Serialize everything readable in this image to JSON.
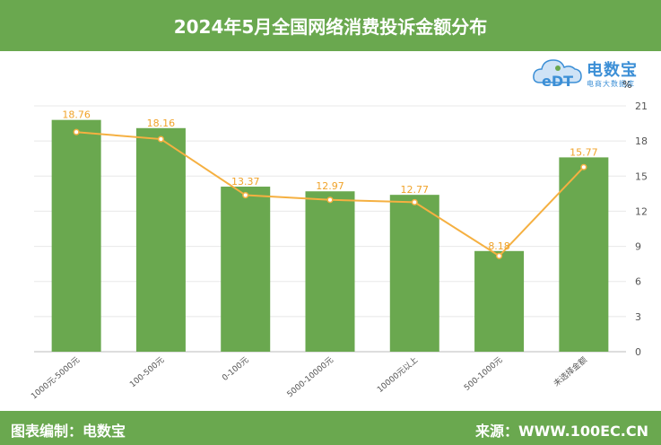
{
  "header": {
    "title": "2024年5月全国网络消费投诉金额分布"
  },
  "footer": {
    "left": "图表编制：电数宝",
    "right": "来源：WWW.100EC.CN"
  },
  "logo": {
    "brand": "电数宝",
    "tagline": "电商大数据库",
    "badge": "eDT"
  },
  "colors": {
    "bar": "#6aa84f",
    "line": "#f5b041",
    "label": "#f0a32a",
    "banner": "#6aa84f"
  },
  "chart_data": {
    "type": "bar",
    "unit": "%",
    "categories": [
      "1000元-5000元",
      "100-500元",
      "0-100元",
      "5000-10000元",
      "10000元以上",
      "500-1000元",
      "未选择金额"
    ],
    "series": [
      {
        "type": "bar",
        "values": [
          19.8,
          19.1,
          14.1,
          13.7,
          13.4,
          8.6,
          16.6
        ]
      },
      {
        "type": "line",
        "values": [
          18.76,
          18.16,
          13.37,
          12.97,
          12.77,
          8.18,
          15.77
        ],
        "labels": [
          "18.76",
          "18.16",
          "13.37",
          "12.97",
          "12.77",
          "8.18",
          "15.77"
        ]
      }
    ],
    "y_axis": {
      "position": "right",
      "min": 0,
      "max": 21,
      "ticks": [
        0,
        3,
        6,
        9,
        12,
        15,
        18,
        21
      ]
    },
    "grid": true
  }
}
